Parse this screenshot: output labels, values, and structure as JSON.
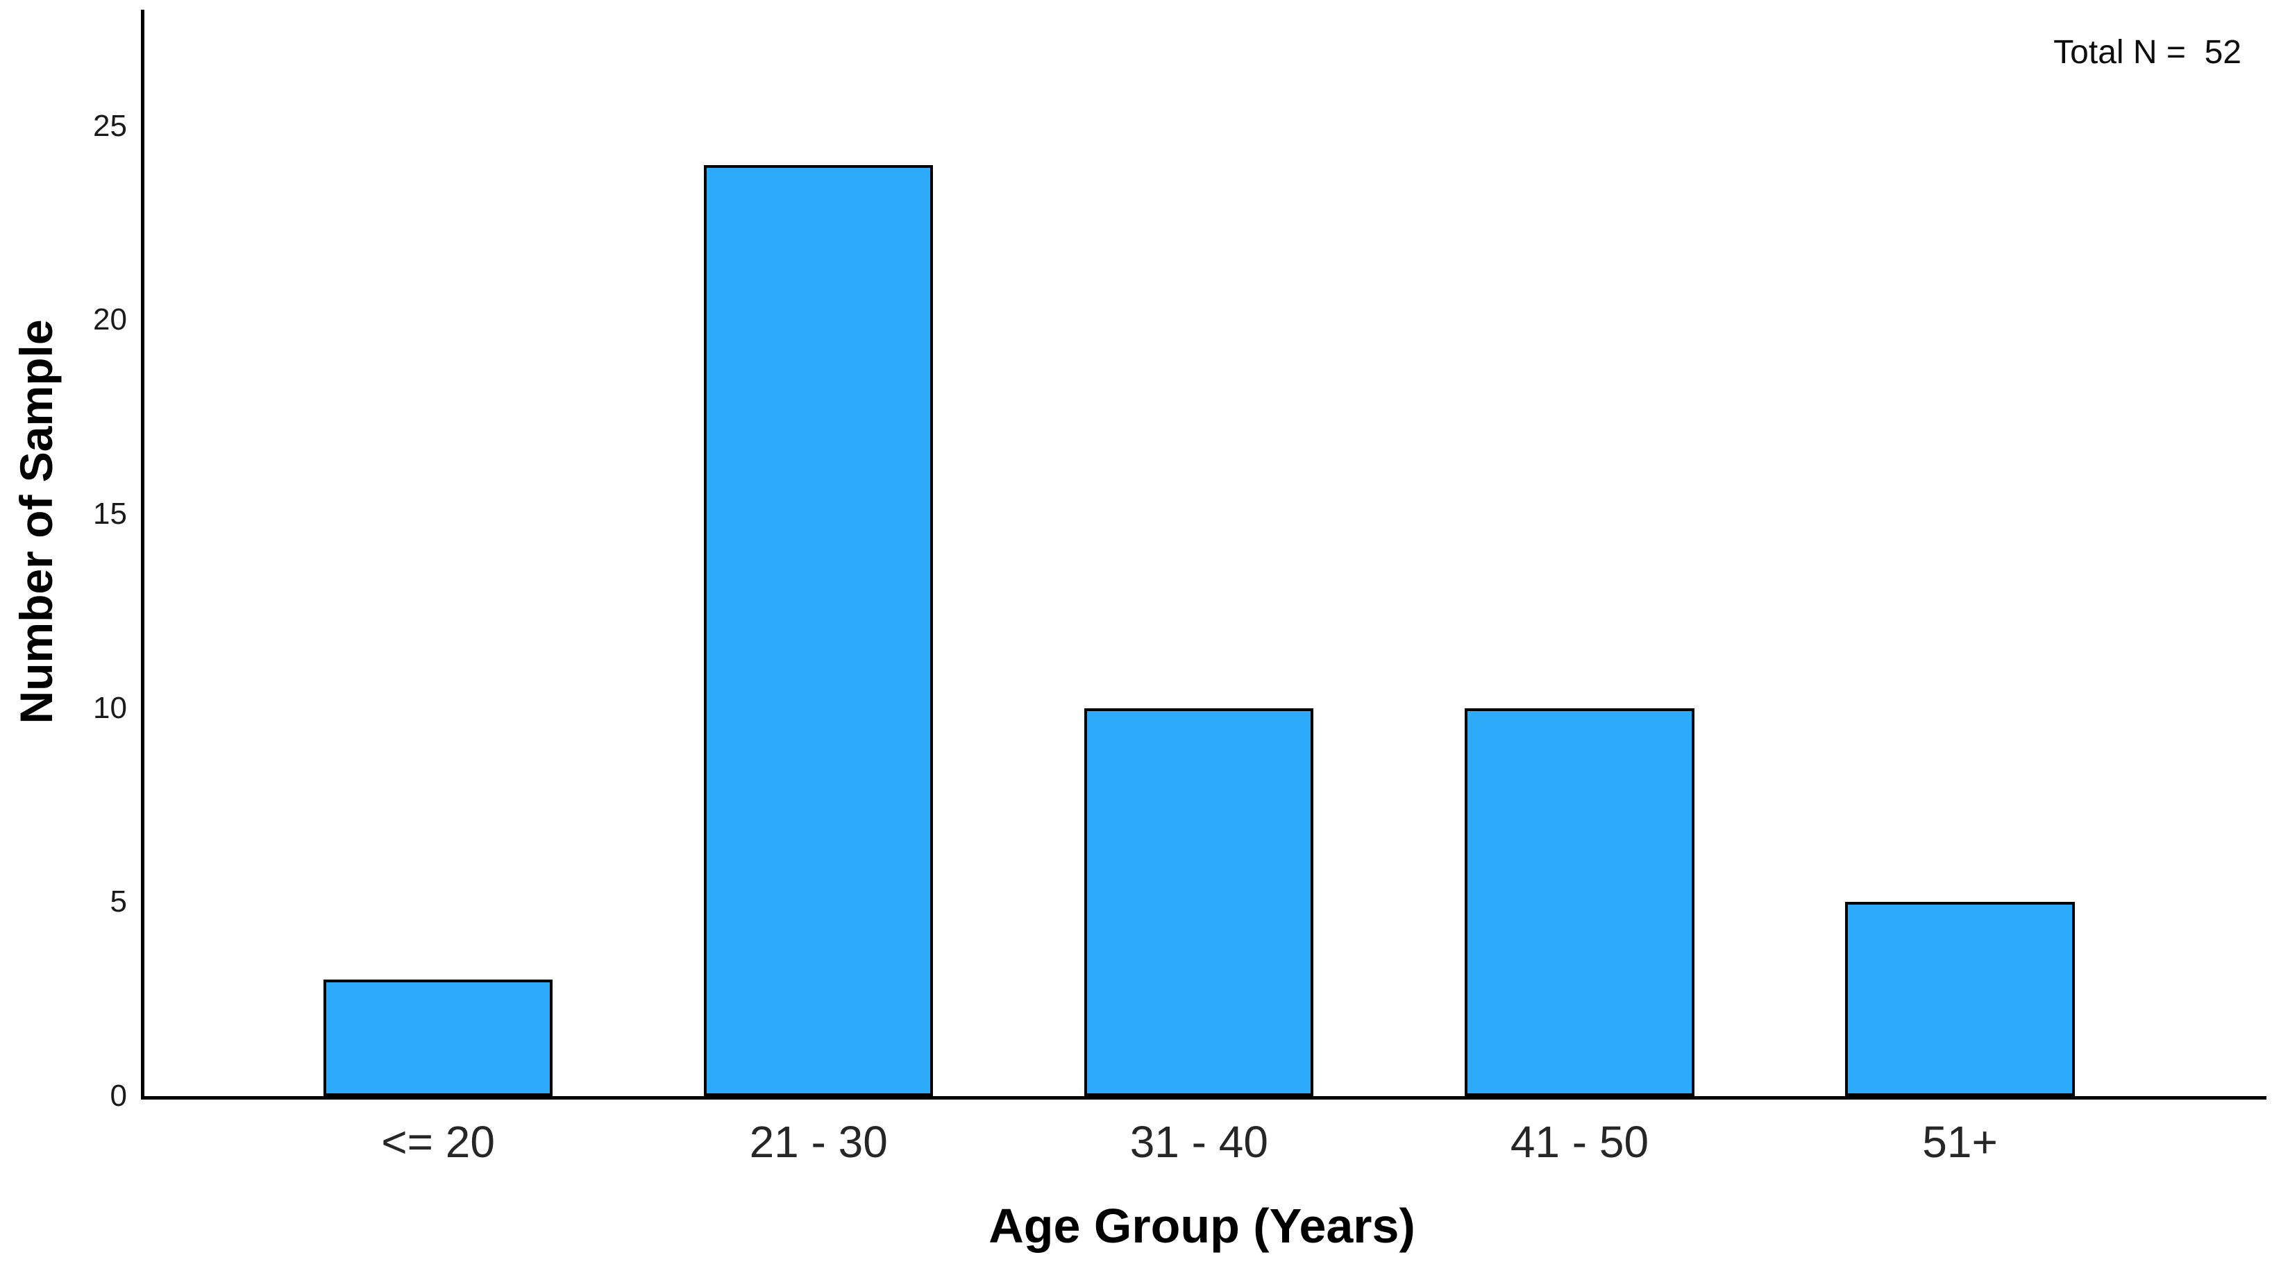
{
  "chart_data": {
    "type": "bar",
    "title": "",
    "categories": [
      "<= 20",
      "21 - 30",
      "31 - 40",
      "41 - 50",
      "51+"
    ],
    "values": [
      3,
      24,
      10,
      10,
      5
    ],
    "series_name": "Number of Sample",
    "xlabel": "Age Group (Years)",
    "ylabel": "Number of Sample",
    "yticks": [
      0,
      5,
      10,
      15,
      20,
      25
    ],
    "ylim": [
      0,
      28
    ],
    "annotation": "Total N =  52",
    "total_n": 52,
    "bar_fill_color": "#2EAAFB",
    "bar_border_color": "#000000",
    "axis_color": "#000000",
    "background_color": "#FFFFFF",
    "grid": false,
    "legend_position": "none"
  }
}
